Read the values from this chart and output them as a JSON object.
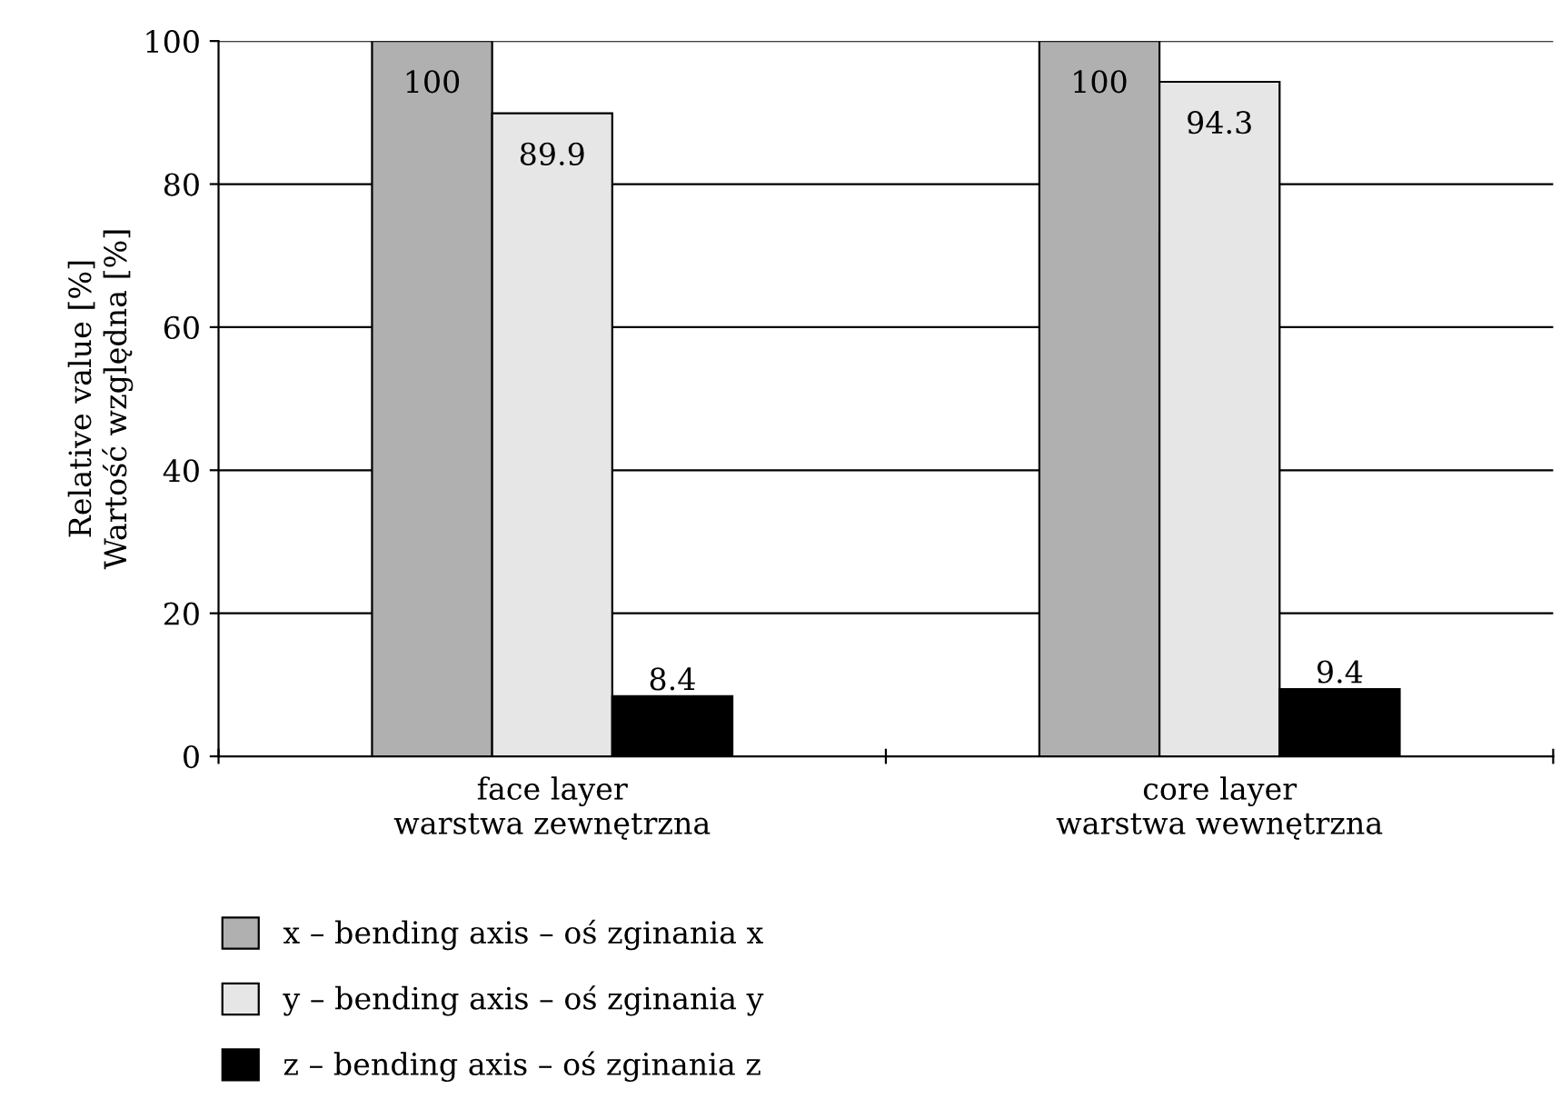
{
  "chart_data": {
    "type": "bar",
    "ylabel": "Relative value [%]\nWartość względna [%]",
    "categories": [
      "face layer\nwarstwa zewnętrzna",
      "core layer\nwarstwa wewnętrzna"
    ],
    "series": [
      {
        "name": "x – bending axis – oś zginania x",
        "color": "#b0b0b0",
        "values": [
          100,
          100
        ]
      },
      {
        "name": "y – bending axis – oś zginania y",
        "color": "#e6e6e6",
        "values": [
          89.9,
          94.3
        ]
      },
      {
        "name": "z – bending axis – oś zginania z",
        "color": "#000000",
        "values": [
          8.4,
          9.4
        ]
      }
    ],
    "ylim": [
      0,
      100
    ],
    "yticks": [
      0,
      20,
      40,
      60,
      80,
      100
    ],
    "grid": "y",
    "legend": "bottom",
    "data_labels": true
  }
}
